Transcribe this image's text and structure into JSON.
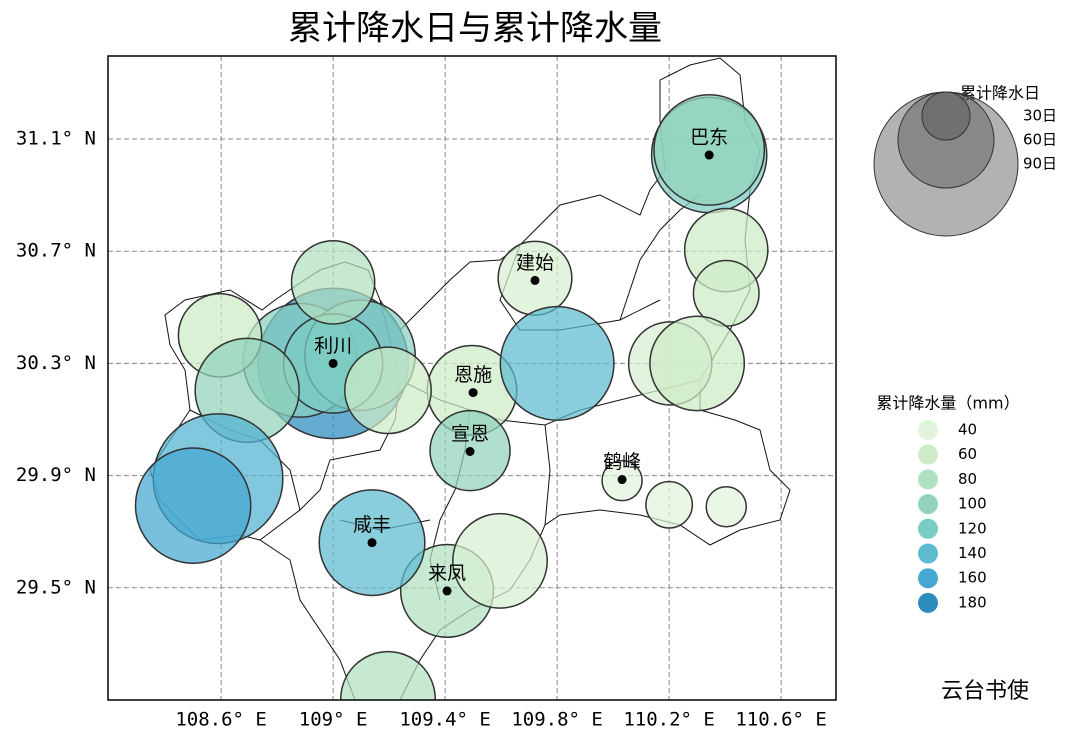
{
  "chart_data": {
    "type": "bubble",
    "title": "累计降水日与累计降水量",
    "xlim": [
      108.196,
      110.796
    ],
    "ylim": [
      29.1,
      31.396
    ],
    "xticks": [
      {
        "value": 108.6,
        "label": "108.6° E"
      },
      {
        "value": 109.0,
        "label": "109° E"
      },
      {
        "value": 109.4,
        "label": "109.4° E"
      },
      {
        "value": 109.8,
        "label": "109.8° E"
      },
      {
        "value": 110.2,
        "label": "110.2° E"
      },
      {
        "value": 110.6,
        "label": "110.6° E"
      }
    ],
    "yticks": [
      {
        "value": 31.1,
        "label": "31.1° N"
      },
      {
        "value": 30.7,
        "label": "30.7° N"
      },
      {
        "value": 30.3,
        "label": "30.3° N"
      },
      {
        "value": 29.9,
        "label": "29.9° N"
      },
      {
        "value": 29.5,
        "label": "29.5° N"
      }
    ],
    "grid": true,
    "bubbles": {
      "x": [
        109.0,
        110.343,
        110.343,
        110.404,
        110.404,
        110.204,
        110.3,
        109.721,
        109.496,
        109.8,
        109.489,
        110.032,
        110.2,
        110.404,
        109.407,
        109.596,
        109.139,
        109.196,
        108.882,
        109.096,
        109.0,
        109.0,
        109.196,
        108.596,
        108.693,
        108.589,
        108.5
      ],
      "y": [
        30.3,
        31.043,
        31.061,
        30.704,
        30.55,
        30.3,
        30.3,
        30.604,
        30.204,
        30.3,
        29.989,
        29.882,
        29.796,
        29.789,
        29.489,
        29.596,
        29.661,
        29.104,
        30.311,
        30.329,
        30.3,
        30.589,
        30.204,
        30.4,
        30.204,
        29.889,
        29.793
      ],
      "size": [
        94,
        72,
        69,
        52,
        41,
        52,
        59,
        46,
        56,
        71,
        50,
        25,
        29,
        25,
        58,
        59,
        66,
        59,
        71,
        69,
        62,
        52,
        54,
        52,
        65,
        81,
        72
      ],
      "values": [
        180,
        120,
        100,
        60,
        60,
        50,
        60,
        50,
        60,
        140,
        100,
        40,
        40,
        40,
        80,
        50,
        140,
        80,
        110,
        110,
        120,
        80,
        60,
        60,
        100,
        150,
        160
      ]
    },
    "cities": {
      "names": [
        "巴东",
        "建始",
        "利川",
        "恩施",
        "宣恩",
        "鹤峰",
        "咸丰",
        "来凤"
      ],
      "x": [
        110.343,
        109.721,
        109.0,
        109.5,
        109.489,
        110.032,
        109.139,
        109.407
      ],
      "y": [
        31.043,
        30.596,
        30.3,
        30.196,
        29.986,
        29.886,
        29.661,
        29.489
      ]
    },
    "size_legend": {
      "title": "累计降水日",
      "items": [
        {
          "value": 30,
          "label": "30日"
        },
        {
          "value": 60,
          "label": "60日"
        },
        {
          "value": 90,
          "label": "90日"
        }
      ],
      "color": "#555555"
    },
    "color_legend": {
      "title": "累计降水量（mm）",
      "ticks": [
        40,
        60,
        80,
        100,
        120,
        140,
        160,
        180
      ],
      "colors": [
        "#e3f4dc",
        "#cdebc6",
        "#b1e0c0",
        "#92d3bb",
        "#7accc4",
        "#5dbbd0",
        "#45a8d2",
        "#2b8cbe"
      ]
    },
    "watermark": "云台书使"
  }
}
